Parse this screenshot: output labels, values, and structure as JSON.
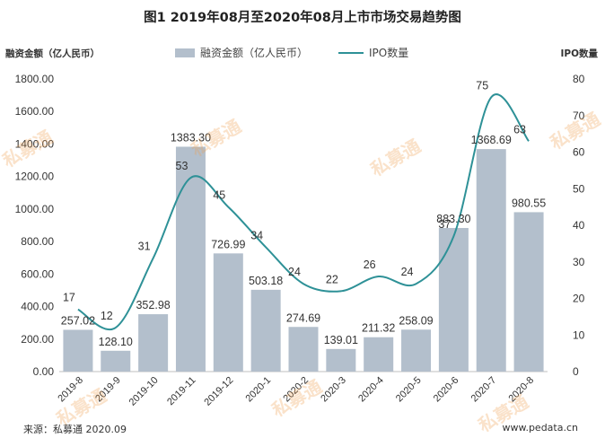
{
  "title": "图1  2019年08月至2020年08月上市市场交易趋势图",
  "legend": {
    "bar": "融资金额（亿人民币）",
    "line": "IPO数量"
  },
  "footer": {
    "source": "来源：私募通 2020.09",
    "site": "www.pedata.cn"
  },
  "watermark": "私募通",
  "colors": {
    "bar": "#b3bfcc",
    "line": "#2e9197"
  },
  "chart_data": {
    "type": "bar",
    "categories": [
      "2019-8",
      "2019-9",
      "2019-10",
      "2019-11",
      "2019-12",
      "2020-1",
      "2020-2",
      "2020-3",
      "2020-4",
      "2020-5",
      "2020-6",
      "2020-7",
      "2020-8"
    ],
    "ylabel": "融资金额（亿人民币）",
    "y2label": "IPO数量",
    "ylim": [
      0,
      1800
    ],
    "y2lim": [
      0,
      80
    ],
    "y_ticks": [
      "0.00",
      "200.00",
      "400.00",
      "600.00",
      "800.00",
      "1000.00",
      "1200.00",
      "1400.00",
      "1600.00",
      "1800.00"
    ],
    "y2_ticks": [
      "0",
      "10",
      "20",
      "30",
      "40",
      "50",
      "60",
      "70",
      "80"
    ],
    "series": [
      {
        "name": "融资金额（亿人民币）",
        "type": "bar",
        "values": [
          257.02,
          128.1,
          352.98,
          1383.3,
          726.99,
          503.18,
          274.69,
          139.01,
          211.32,
          258.09,
          883.3,
          1368.69,
          980.55
        ],
        "labels": [
          "257.02",
          "128.10",
          "352.98",
          "1383.30",
          "726.99",
          "503.18",
          "274.69",
          "139.01",
          "211.32",
          "258.09",
          "883.30",
          "1368.69",
          "980.55"
        ]
      },
      {
        "name": "IPO数量",
        "type": "line",
        "axis": "right",
        "values": [
          17,
          12,
          31,
          53,
          45,
          34,
          24,
          22,
          26,
          24,
          37,
          75,
          63
        ],
        "labels": [
          "17",
          "12",
          "31",
          "53",
          "45",
          "34",
          "24",
          "22",
          "26",
          "24",
          "37",
          "75",
          "63"
        ]
      }
    ],
    "grid": false,
    "legend_position": "top"
  }
}
